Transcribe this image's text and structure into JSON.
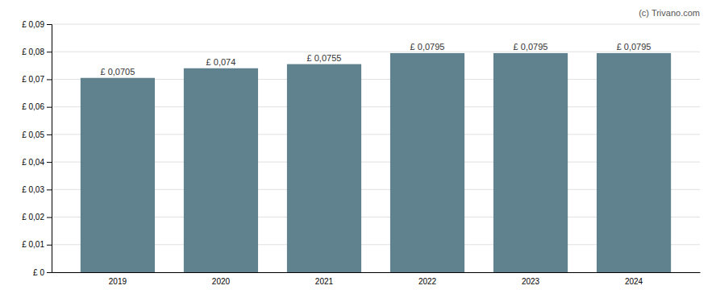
{
  "chart_data": {
    "type": "bar",
    "categories": [
      "2019",
      "2020",
      "2021",
      "2022",
      "2023",
      "2024"
    ],
    "values": [
      0.0705,
      0.074,
      0.0755,
      0.0795,
      0.0795,
      0.0795
    ],
    "value_labels": [
      "£ 0,0705",
      "£ 0,074",
      "£ 0,0755",
      "£ 0,0795",
      "£ 0,0795",
      "£ 0,0795"
    ],
    "data_labels": true,
    "color": "#60828f",
    "ylim": [
      0,
      0.09
    ],
    "yticks": [
      {
        "value": 0,
        "label": "£ 0"
      },
      {
        "value": 0.01,
        "label": "£ 0,01"
      },
      {
        "value": 0.02,
        "label": "£ 0,02"
      },
      {
        "value": 0.03,
        "label": "£ 0,03"
      },
      {
        "value": 0.04,
        "label": "£ 0,04"
      },
      {
        "value": 0.05,
        "label": "£ 0,05"
      },
      {
        "value": 0.06,
        "label": "£ 0,06"
      },
      {
        "value": 0.07,
        "label": "£ 0,07"
      },
      {
        "value": 0.08,
        "label": "£ 0,08"
      },
      {
        "value": 0.09,
        "label": "£ 0,09"
      }
    ],
    "grid": true,
    "annotations": [
      "(c) Trivano.com"
    ]
  }
}
